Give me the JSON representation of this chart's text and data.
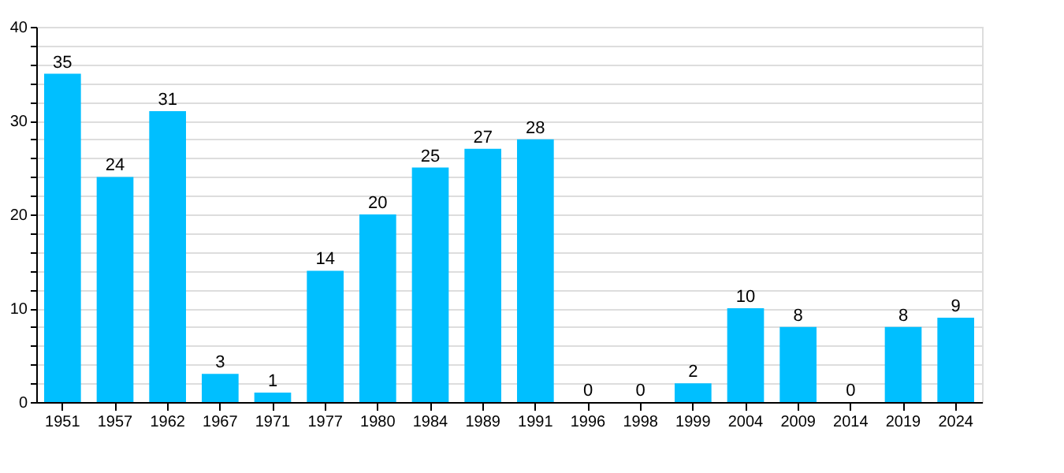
{
  "chart_data": {
    "type": "bar",
    "categories": [
      "1951",
      "1957",
      "1962",
      "1967",
      "1971",
      "1977",
      "1980",
      "1984",
      "1989",
      "1991",
      "1996",
      "1998",
      "1999",
      "2004",
      "2009",
      "2014",
      "2019",
      "2024"
    ],
    "values": [
      35,
      24,
      31,
      3,
      1,
      14,
      20,
      25,
      27,
      28,
      0,
      0,
      2,
      10,
      8,
      0,
      8,
      9
    ],
    "color": "#00bfff",
    "ylim": [
      0,
      40
    ],
    "yticks": [
      0,
      {
        "value": 2,
        "label": null
      },
      {
        "value": 4,
        "label": null
      },
      {
        "value": 6,
        "label": null
      },
      {
        "value": 8,
        "label": null
      },
      10,
      {
        "value": 12,
        "label": null
      },
      {
        "value": 14,
        "label": null
      },
      {
        "value": 16,
        "label": null
      },
      {
        "value": 18,
        "label": null
      },
      20,
      {
        "value": 22,
        "label": null
      },
      {
        "value": 24,
        "label": null
      },
      {
        "value": 26,
        "label": null
      },
      {
        "value": 28,
        "label": null
      },
      30,
      {
        "value": 32,
        "label": null
      },
      {
        "value": 34,
        "label": null
      },
      {
        "value": 36,
        "label": null
      },
      {
        "value": 38,
        "label": null
      },
      40
    ],
    "grid": "y",
    "data_labels": true
  }
}
